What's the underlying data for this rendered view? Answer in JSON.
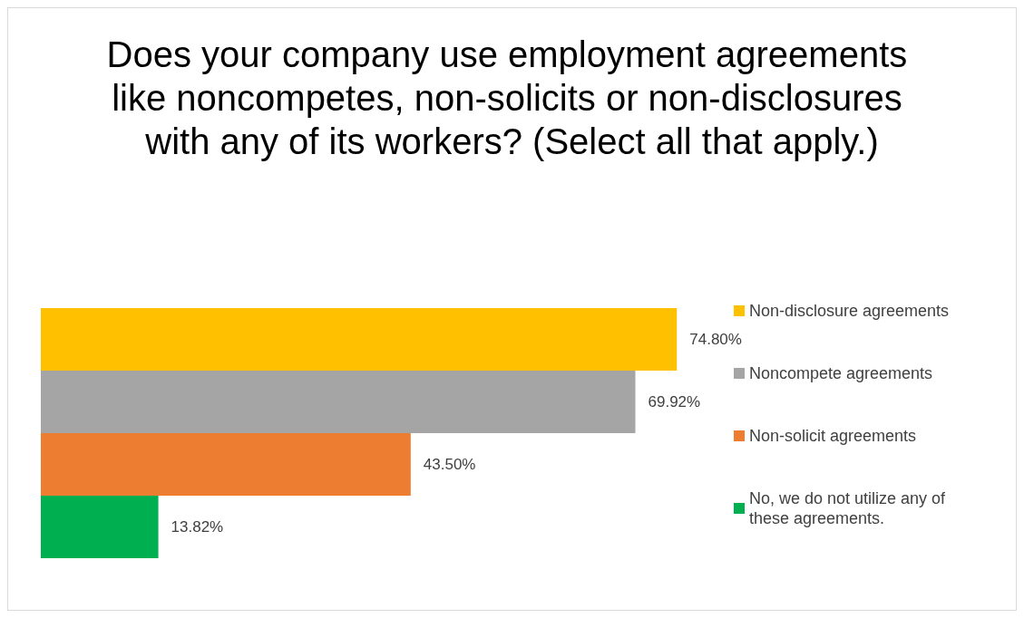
{
  "chart_data": {
    "type": "bar",
    "orientation": "horizontal",
    "title": "Does your company use employment agreements like noncompetes, non-solicits or non-disclosures with any of its workers? (Select all that apply.)",
    "categories": [
      null
    ],
    "legend": "right",
    "grid": false,
    "tick_labels": false,
    "series": [
      {
        "name": "Non-disclosure agreements",
        "color": "#ffc000",
        "values": [
          74.8
        ],
        "value_labels": [
          "74.80%"
        ]
      },
      {
        "name": "Noncompete agreements",
        "color": "#a5a5a5",
        "values": [
          69.92
        ],
        "value_labels": [
          "69.92%"
        ]
      },
      {
        "name": "Non-solicit agreements",
        "color": "#ed7d31",
        "values": [
          43.5
        ],
        "value_labels": [
          "43.50%"
        ]
      },
      {
        "name": "No, we do not utilize any of these agreements.",
        "color": "#00b050",
        "values": [
          13.82
        ],
        "value_labels": [
          "13.82%"
        ]
      }
    ]
  }
}
